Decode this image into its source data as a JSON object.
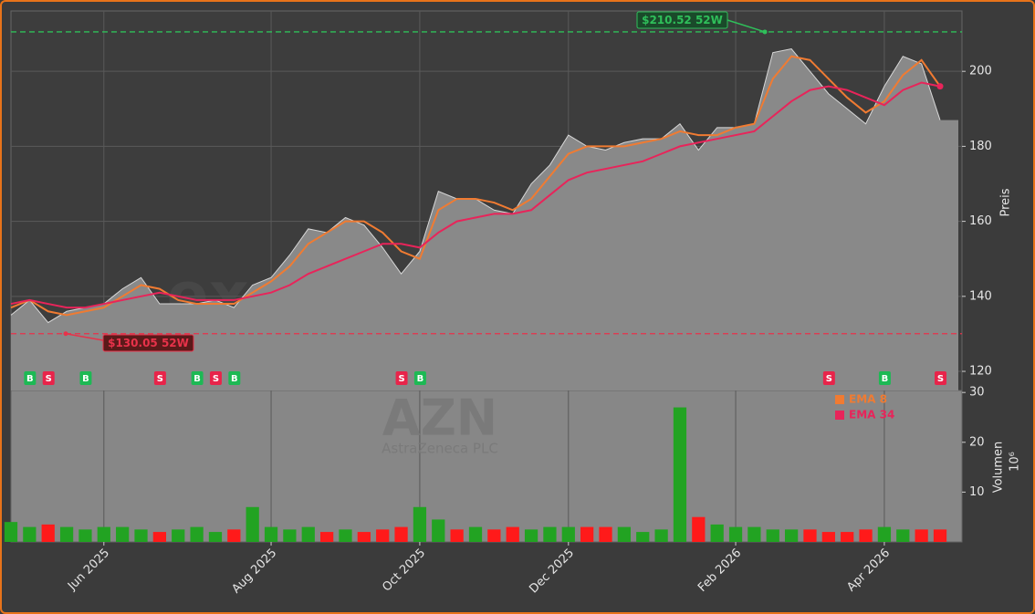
{
  "chart_data": {
    "type": "line",
    "categories": [
      null,
      null,
      null,
      null,
      null,
      "Jun 2025",
      null,
      null,
      null,
      null,
      null,
      null,
      null,
      null,
      "Aug 2025",
      null,
      null,
      null,
      null,
      null,
      null,
      null,
      "Oct 2025",
      null,
      null,
      null,
      null,
      null,
      null,
      null,
      "Dec 2025",
      null,
      null,
      null,
      null,
      null,
      null,
      null,
      null,
      "Feb 2026",
      null,
      null,
      null,
      null,
      null,
      null,
      null,
      "Apr 2026",
      null,
      null,
      null
    ],
    "values": [
      135,
      139,
      133,
      136,
      137,
      138,
      142,
      145,
      138,
      138,
      138,
      139,
      137,
      143,
      145,
      151,
      158,
      157,
      161,
      159,
      153,
      146,
      152,
      168,
      166,
      166,
      163,
      162,
      170,
      175,
      183,
      180,
      179,
      181,
      182,
      182,
      186,
      179,
      185,
      185,
      186,
      205,
      206,
      200,
      194,
      190,
      186,
      196,
      204,
      202,
      187
    ],
    "color": "#898989",
    "series": [
      {
        "name": "EMA 8",
        "color": "#f07b32",
        "values": [
          137,
          139,
          136,
          135,
          136,
          137,
          140,
          143,
          142,
          139,
          138,
          138,
          138,
          141,
          144,
          148,
          154,
          157,
          160,
          160,
          157,
          152,
          150,
          163,
          166,
          166,
          165,
          163,
          166,
          172,
          178,
          180,
          180,
          180,
          181,
          182,
          184,
          183,
          183,
          185,
          186,
          198,
          204,
          203,
          198,
          193,
          189,
          192,
          199,
          203,
          196
        ]
      },
      {
        "name": "EMA 34",
        "color": "#e8245a",
        "values": [
          138,
          139,
          138,
          137,
          137,
          138,
          139,
          140,
          141,
          140,
          139,
          139,
          139,
          140,
          141,
          143,
          146,
          148,
          150,
          152,
          154,
          154,
          153,
          157,
          160,
          161,
          162,
          162,
          163,
          167,
          171,
          173,
          174,
          175,
          176,
          178,
          180,
          181,
          182,
          183,
          184,
          188,
          192,
          195,
          196,
          195,
          193,
          191,
          195,
          197,
          196
        ]
      }
    ],
    "signals": [
      null,
      "B",
      "S",
      null,
      "B",
      null,
      null,
      null,
      "S",
      null,
      "B",
      "S",
      "B",
      null,
      null,
      null,
      null,
      null,
      null,
      null,
      null,
      "S",
      "B",
      null,
      null,
      null,
      null,
      null,
      null,
      null,
      null,
      null,
      null,
      null,
      null,
      null,
      null,
      null,
      null,
      null,
      null,
      null,
      null,
      null,
      "S",
      null,
      null,
      "B",
      null,
      null,
      "S"
    ],
    "signal_colors": {
      "B": "#1db954",
      "S": "#e8244a"
    },
    "reference_lines": [
      {
        "value": 210.52,
        "label": "$210.52 52W",
        "color": "#2fbf5a"
      },
      {
        "value": 130.05,
        "label": "$130.05 52W",
        "color": "#e8324a"
      }
    ],
    "ylim": [
      114.9,
      216.1
    ],
    "yticks": [
      120,
      140,
      160,
      180,
      200
    ],
    "ylabel": "Preis",
    "grid": true,
    "volume": {
      "values": [
        4,
        3,
        3.5,
        3,
        2.5,
        3,
        3,
        2.5,
        2,
        2.5,
        3,
        2,
        2.5,
        7,
        3,
        2.5,
        3,
        2,
        2.5,
        2,
        2.5,
        3,
        7,
        4.5,
        2.5,
        3,
        2.5,
        3,
        2.5,
        3,
        3,
        3,
        3,
        3,
        2,
        2.5,
        27,
        5,
        3.5,
        3,
        3,
        2.5,
        2.5,
        2.5,
        2,
        2,
        2.5,
        3,
        2.5,
        2.5,
        2.5
      ],
      "up_color": "#22a322",
      "down_color": "#ff1a1a",
      "ylim": [
        0,
        30.4
      ],
      "yticks": [
        10,
        20,
        30
      ],
      "ylabel": "Volumen",
      "unit": "10⁶"
    },
    "watermark": {
      "text": "exsignale.trade",
      "ticker": "AZN",
      "name": "AstraZeneca PLC"
    }
  }
}
